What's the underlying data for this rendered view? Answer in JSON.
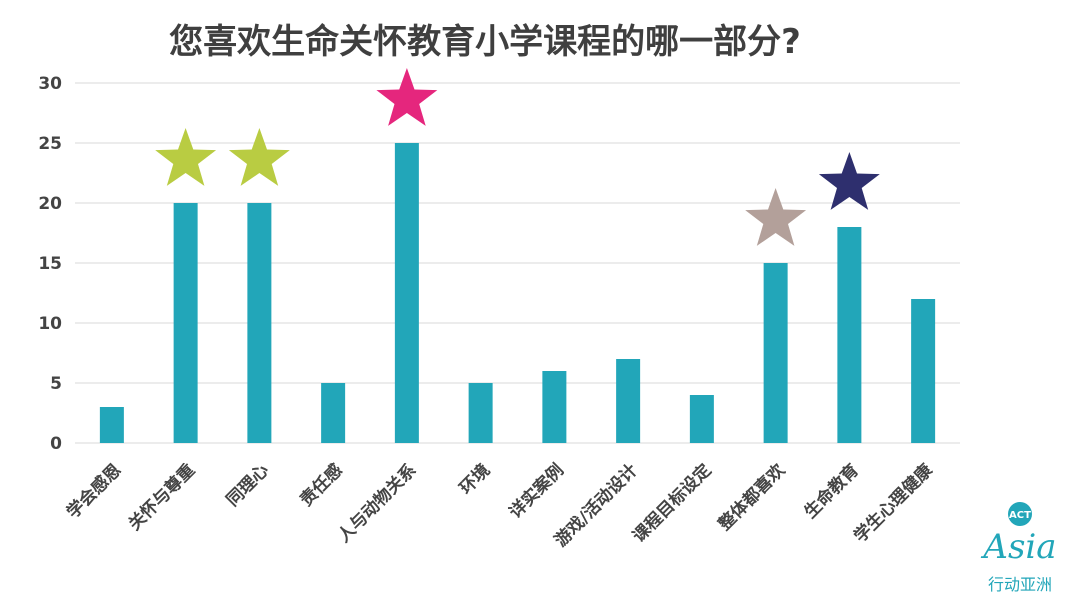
{
  "chart_data": {
    "type": "bar",
    "title": "您喜欢生命关怀教育小学课程的哪一部分?",
    "categories": [
      "学会感恩",
      "关怀与尊重",
      "同理心",
      "责任感",
      "人与动物关系",
      "环境",
      "详实案例",
      "游戏/活动设计",
      "课程目标设定",
      "整体都喜欢",
      "生命教育",
      "学生心理健康"
    ],
    "values": [
      3,
      20,
      20,
      5,
      25,
      5,
      6,
      7,
      4,
      15,
      18,
      12
    ],
    "ylim": [
      0,
      30
    ],
    "yticks": [
      0,
      5,
      10,
      15,
      20,
      25,
      30
    ],
    "grid": true,
    "bar_color": "#22A6B9",
    "stars": [
      {
        "category_index": 1,
        "color": "#B9CC42"
      },
      {
        "category_index": 2,
        "color": "#B9CC42"
      },
      {
        "category_index": 4,
        "color": "#E5267D"
      },
      {
        "category_index": 9,
        "color": "#B3A09A"
      },
      {
        "category_index": 10,
        "color": "#2E2F6E"
      }
    ]
  },
  "logo": {
    "top_text": "ACT",
    "main_text": "Asia",
    "sub_text": "行动亚洲",
    "color": "#22A6B9"
  }
}
